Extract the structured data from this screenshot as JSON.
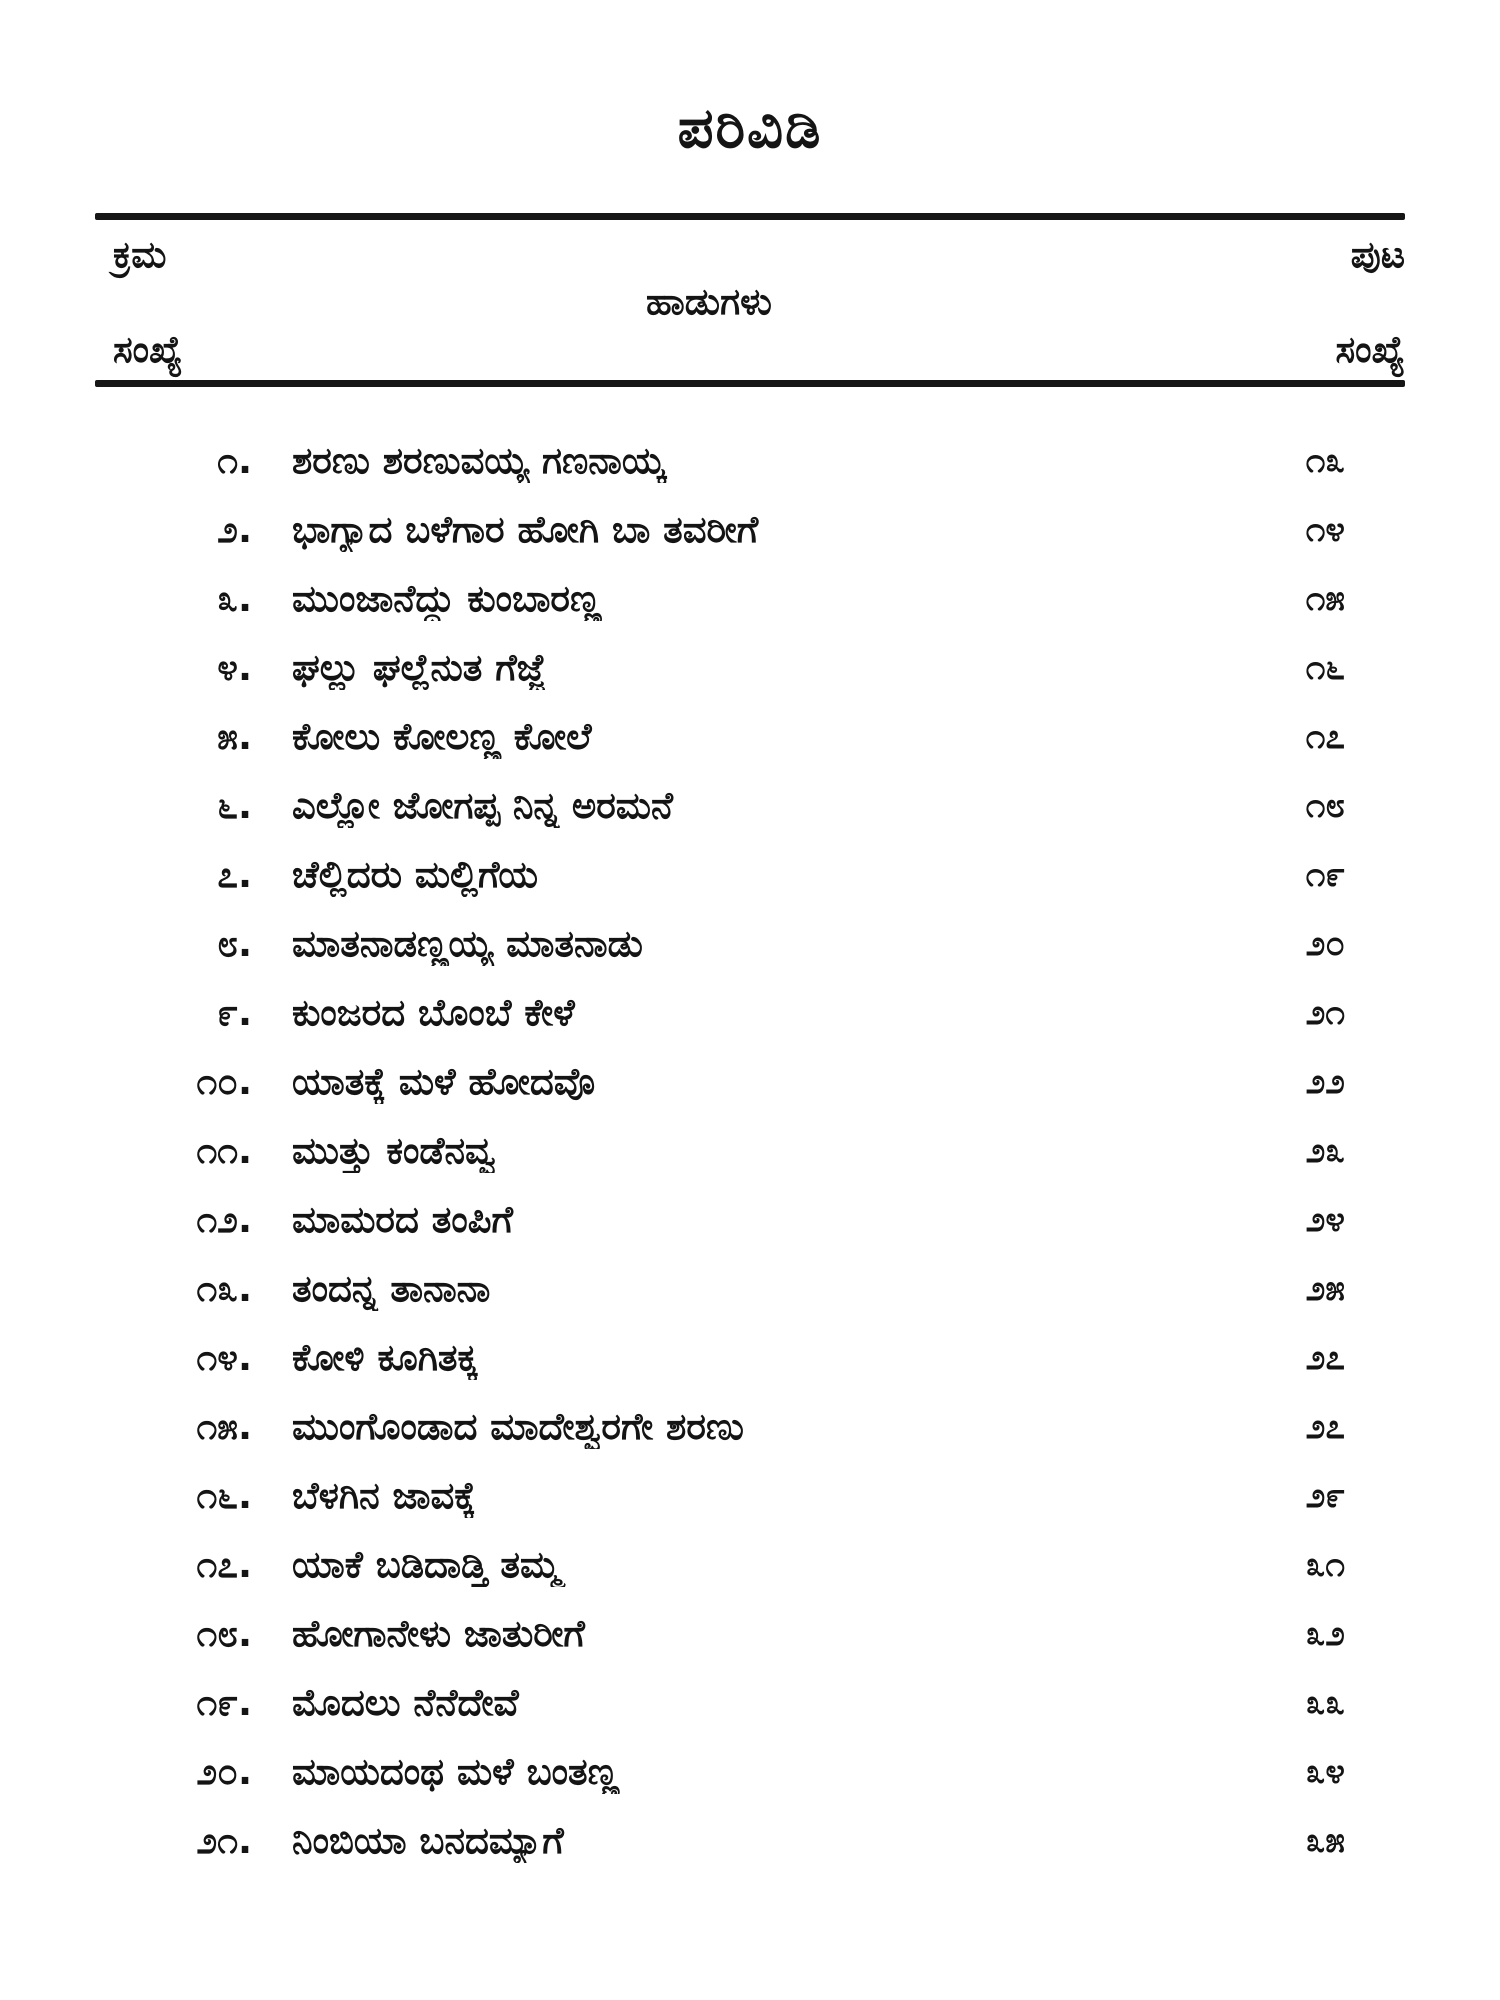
{
  "page_title": "ಪರಿವಿಡಿ",
  "table": {
    "header": {
      "col_serial_line1": "ಕ್ರಮ",
      "col_serial_line2": "ಸಂಖ್ಯೆ",
      "col_songs": "ಹಾಡುಗಳು",
      "col_page_line1": "ಪುಟ",
      "col_page_line2": "ಸಂಖ್ಯೆ"
    },
    "rows": [
      {
        "no": "೧.",
        "title": "ಶರಣು ಶರಣುವಯ್ಯ ಗಣನಾಯ್ಕ",
        "page": "೧೩"
      },
      {
        "no": "೨.",
        "title": "ಭಾಗ್ಯಾದ ಬಳೆಗಾರ ಹೋಗಿ ಬಾ ತವರೀಗೆ",
        "page": "೧೪"
      },
      {
        "no": "೩.",
        "title": "ಮುಂಜಾನೆದ್ದು ಕುಂಬಾರಣ್ಣ",
        "page": "೧೫"
      },
      {
        "no": "೪.",
        "title": "ಘಲ್ಲು ಘಲ್ಲೆನುತ ಗೆಜ್ಜೆ",
        "page": "೧೬"
      },
      {
        "no": "೫.",
        "title": "ಕೋಲು ಕೋಲಣ್ಣ ಕೋಲೆ",
        "page": "೧೭"
      },
      {
        "no": "೬.",
        "title": "ಎಲ್ಲೋ ಜೋಗಪ್ಪ ನಿನ್ನ ಅರಮನೆ",
        "page": "೧೮"
      },
      {
        "no": "೭.",
        "title": "ಚೆಲ್ಲಿದರು ಮಲ್ಲಿಗೆಯ",
        "page": "೧೯"
      },
      {
        "no": "೮.",
        "title": "ಮಾತನಾಡಣ್ಣಯ್ಯ ಮಾತನಾಡು",
        "page": "೨೦"
      },
      {
        "no": "೯.",
        "title": "ಕುಂಜರದ ಬೊಂಬೆ ಕೇಳೆ",
        "page": "೨೧"
      },
      {
        "no": "೧೦.",
        "title": "ಯಾತಕ್ಕೆ ಮಳೆ ಹೋದವೊ",
        "page": "೨೨"
      },
      {
        "no": "೧೧.",
        "title": "ಮುತ್ತು ಕಂಡೆನವ್ವ",
        "page": "೨೩"
      },
      {
        "no": "೧೨.",
        "title": "ಮಾಮರದ ತಂಪಿಗೆ",
        "page": "೨೪"
      },
      {
        "no": "೧೩.",
        "title": "ತಂದನ್ನ ತಾನಾನಾ",
        "page": "೨೫"
      },
      {
        "no": "೧೪.",
        "title": "ಕೋಳಿ ಕೂಗಿತಕ್ಕ",
        "page": "೨೭"
      },
      {
        "no": "೧೫.",
        "title": "ಮುಂಗೊಂಡಾದ ಮಾದೇಶ್ವರಗೇ ಶರಣು",
        "page": "೨೭"
      },
      {
        "no": "೧೬.",
        "title": "ಬೆಳಗಿನ ಜಾವಕ್ಕೆ",
        "page": "೨೯"
      },
      {
        "no": "೧೭.",
        "title": "ಯಾಕೆ ಬಡಿದಾಡ್ತಿ ತಮ್ಮ",
        "page": "೩೧"
      },
      {
        "no": "೧೮.",
        "title": "ಹೋಗಾನೇಳು ಜಾತುರೀಗೆ",
        "page": "೩೨"
      },
      {
        "no": "೧೯.",
        "title": "ಮೊದಲು ನೆನೆದೇವೆ",
        "page": "೩೩"
      },
      {
        "no": "೨೦.",
        "title": "ಮಾಯದಂಥ ಮಳೆ ಬಂತಣ್ಣ",
        "page": "೩೪"
      },
      {
        "no": "೨೧.",
        "title": "ನಿಂಬಿಯಾ ಬನದಮ್ಯಾಗೆ",
        "page": "೩೫"
      }
    ]
  },
  "colors": {
    "ink": "#141414",
    "paper": "#ffffff"
  }
}
